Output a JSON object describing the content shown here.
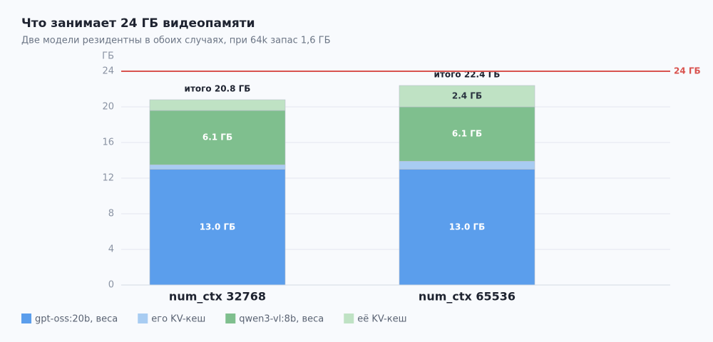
{
  "chart_data": {
    "type": "stacked_bar",
    "title": "Что занимает 24 ГБ видеопамяти",
    "subtitle": "Две модели резидентны в обоих случаях, при 64k запас 1,6 ГБ",
    "y_label": "ГБ",
    "categories": [
      "num_ctx 32768",
      "num_ctx 65536"
    ],
    "series": [
      {
        "name": "gpt-oss:20b, веса",
        "color": "#5b9eec",
        "values": [
          13.0,
          13.0
        ],
        "value_labels": [
          "13.0 ГБ",
          "13.0 ГБ"
        ]
      },
      {
        "name": "его KV-кеш",
        "color": "#a8ccf2",
        "values": [
          0.5,
          0.9
        ]
      },
      {
        "name": "qwen3-vl:8b, веса",
        "color": "#7fbf8e",
        "values": [
          6.1,
          6.1
        ],
        "value_labels": [
          "6.1 ГБ",
          "6.1 ГБ"
        ]
      },
      {
        "name": "её KV-кеш",
        "color": "#bfe2c4",
        "values": [
          1.2,
          2.4
        ],
        "value_labels": [
          null,
          "2.4 ГБ"
        ]
      }
    ],
    "total_labels": [
      "итого 20.8 ГБ",
      "итого 22.4 ГБ"
    ],
    "reference_line": {
      "value": 24,
      "label": "24 ГБ",
      "color": "#d9534f"
    },
    "ylim": [
      0,
      24
    ],
    "yticks": [
      0,
      4,
      8,
      12,
      16,
      20,
      24
    ],
    "grid": true
  }
}
